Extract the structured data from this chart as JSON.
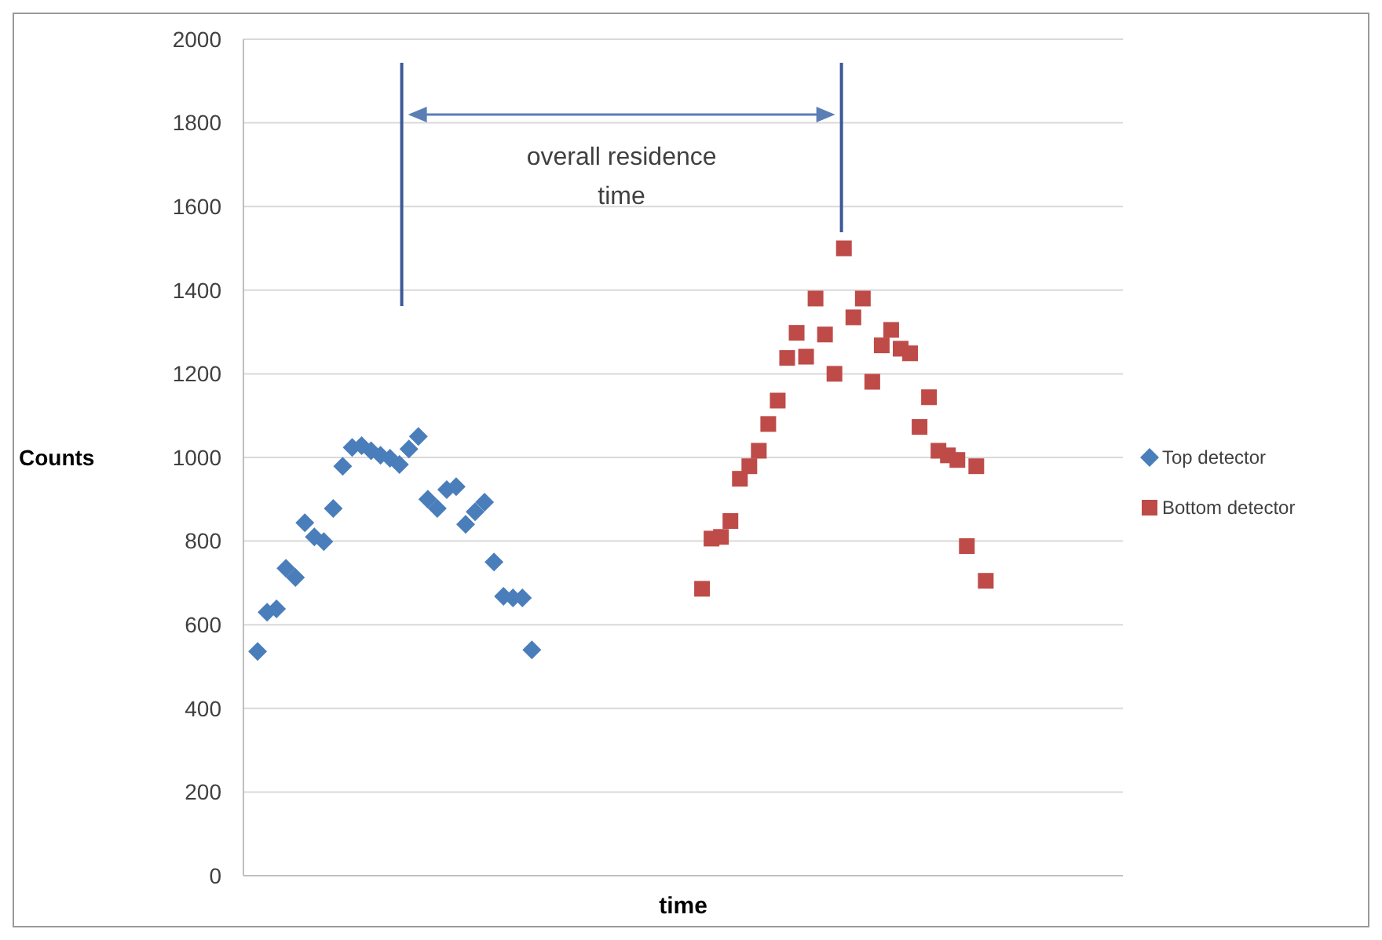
{
  "chart_data": {
    "type": "scatter",
    "xlabel": "time",
    "ylabel": "Counts",
    "categories": [
      null,
      null,
      null,
      null,
      null,
      null,
      null,
      null,
      null,
      null,
      null,
      null,
      null,
      null,
      null,
      null,
      null,
      null,
      null,
      null,
      null,
      null,
      null,
      null,
      null,
      null,
      null,
      null,
      null,
      null,
      null,
      null,
      null,
      null,
      null,
      null,
      null,
      null,
      null,
      null,
      null,
      null,
      null,
      null,
      null,
      null,
      null,
      null,
      null,
      null,
      null,
      null,
      null,
      null,
      null,
      null,
      null,
      null,
      null,
      null,
      null,
      null,
      null,
      null,
      null,
      null,
      null,
      null,
      null,
      null,
      null,
      null,
      null,
      null,
      null,
      null,
      null,
      null,
      null,
      null,
      null,
      null,
      null,
      null,
      null,
      null,
      null,
      null,
      null,
      null,
      null,
      null,
      null
    ],
    "series": [
      {
        "name": "Top detector",
        "color": "#4a7ebb",
        "marker": "diamond",
        "values": [
          null,
          536,
          630,
          638,
          735,
          713,
          844,
          810,
          799,
          878,
          979,
          1024,
          1028,
          1016,
          1005,
          998,
          983,
          1020,
          1050,
          900,
          878,
          923,
          930,
          840,
          870,
          893,
          750,
          668,
          664,
          664,
          540,
          null,
          null,
          null,
          null,
          null,
          null,
          null,
          null,
          null,
          null,
          null,
          null,
          null,
          null,
          null,
          null,
          null,
          null,
          null,
          null,
          null,
          null,
          null,
          null,
          null,
          null,
          null,
          null,
          null,
          null,
          null,
          null,
          null,
          null,
          null,
          null,
          null,
          null,
          null,
          null,
          null,
          null,
          null,
          null,
          null,
          null,
          null,
          null,
          null,
          null,
          null,
          null,
          null,
          null,
          null,
          null,
          null,
          null,
          null,
          null,
          null,
          null
        ]
      },
      {
        "name": "Bottom detector",
        "color": "#be4b48",
        "marker": "square",
        "values": [
          null,
          null,
          null,
          null,
          null,
          null,
          null,
          null,
          null,
          null,
          null,
          null,
          null,
          null,
          null,
          null,
          null,
          null,
          null,
          null,
          null,
          null,
          null,
          null,
          null,
          null,
          null,
          null,
          null,
          null,
          null,
          null,
          null,
          null,
          null,
          null,
          null,
          null,
          null,
          null,
          null,
          null,
          null,
          null,
          null,
          null,
          null,
          null,
          686,
          806,
          810,
          848,
          949,
          979,
          1016,
          1080,
          1136,
          1238,
          1298,
          1241,
          1380,
          1294,
          1200,
          1500,
          1335,
          1380,
          1181,
          1268,
          1305,
          1260,
          1249,
          1073,
          1144,
          1016,
          1005,
          994,
          788,
          979,
          705,
          null,
          null,
          null,
          null,
          null,
          null,
          null,
          null,
          null,
          null,
          null,
          null,
          null,
          null
        ]
      }
    ],
    "ylim": [
      0,
      2000
    ],
    "yticks": [
      0,
      200,
      400,
      600,
      800,
      1000,
      1200,
      1400,
      1600,
      1800,
      2000
    ],
    "grid": "y",
    "legend": "right",
    "annotations": [
      "overall residence time"
    ]
  }
}
